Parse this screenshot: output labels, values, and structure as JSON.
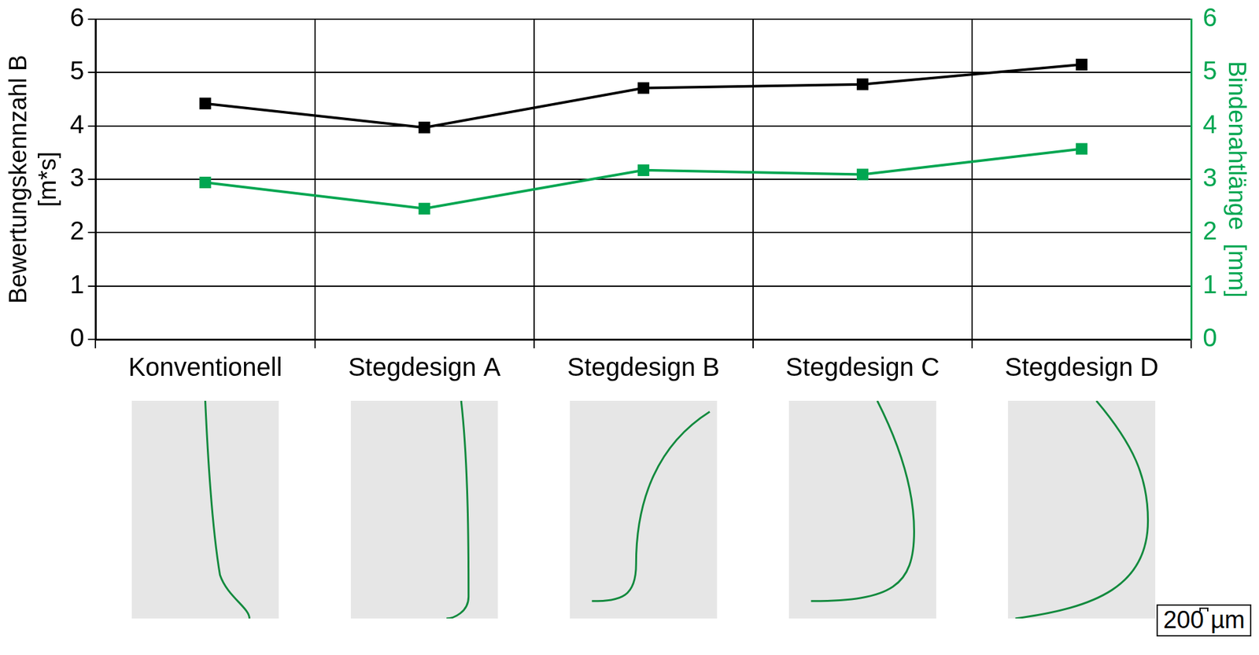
{
  "chart_data": {
    "type": "line",
    "categories": [
      "Konventionell",
      "Stegdesign A",
      "Stegdesign B",
      "Stegdesign C",
      "Stegdesign D"
    ],
    "series": [
      {
        "name": "Bewertungskennzahl B",
        "color": "#000000",
        "values": [
          4.42,
          3.97,
          4.71,
          4.78,
          5.15
        ],
        "marker": "square"
      },
      {
        "name": "Bindenahtlänge",
        "color": "#00a651",
        "values": [
          2.94,
          2.45,
          3.17,
          3.09,
          3.57
        ],
        "marker": "square",
        "axis": "y2"
      }
    ],
    "y_label": [
      "Bewertungskennzahl B",
      "[m*s]"
    ],
    "y2_label": "Bindenahtlänge  [mm]",
    "ylim": [
      0,
      6
    ],
    "yticks": [
      0,
      1,
      2,
      3,
      4,
      5,
      6
    ],
    "y2lim": [
      0,
      6
    ],
    "y2ticks": [
      0,
      1,
      2,
      3,
      4,
      5,
      6
    ],
    "grid": true,
    "annotations": [
      "200 µm"
    ]
  }
}
